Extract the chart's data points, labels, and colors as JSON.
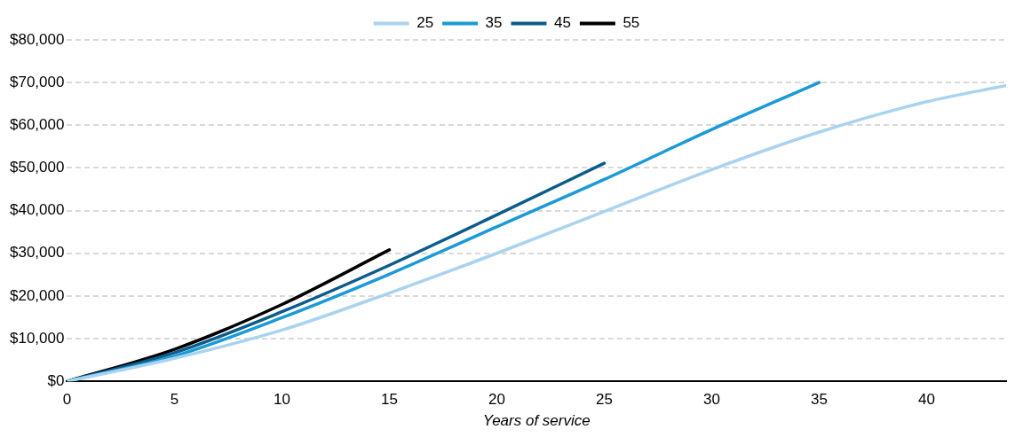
{
  "chart_data": {
    "type": "line",
    "xlabel": "Years of service",
    "x": [
      0,
      5,
      10,
      15,
      20,
      25,
      30,
      35,
      40,
      43.7
    ],
    "series": [
      {
        "name": "25",
        "color": "#a9d3ef",
        "values": [
          0,
          5400,
          12000,
          20700,
          30000,
          39800,
          49600,
          58400,
          65500,
          69300
        ]
      },
      {
        "name": "35",
        "color": "#1a9ad6",
        "x": [
          0,
          5,
          10,
          15,
          20,
          25,
          30,
          35
        ],
        "values": [
          0,
          5900,
          14900,
          25100,
          36200,
          47300,
          59000,
          70000
        ]
      },
      {
        "name": "45",
        "color": "#0b5c8c",
        "x": [
          0,
          5,
          10,
          15,
          20,
          25
        ],
        "values": [
          0,
          6700,
          16300,
          27200,
          39000,
          51100
        ]
      },
      {
        "name": "55",
        "color": "#000000",
        "x": [
          0,
          5,
          10,
          15
        ],
        "values": [
          0,
          7500,
          18000,
          30800
        ]
      }
    ],
    "xlim": [
      0,
      43.7
    ],
    "xticks": [
      0,
      5,
      10,
      15,
      20,
      25,
      30,
      35,
      40
    ],
    "ylim": [
      0,
      80000
    ],
    "yticks": [
      {
        "value": 0,
        "label": "$0"
      },
      {
        "value": 10000,
        "label": "$10,000"
      },
      {
        "value": 20000,
        "label": "$20,000"
      },
      {
        "value": 30000,
        "label": "$30,000"
      },
      {
        "value": 40000,
        "label": "$40,000"
      },
      {
        "value": 50000,
        "label": "$50,000"
      },
      {
        "value": 60000,
        "label": "$60,000"
      },
      {
        "value": 70000,
        "label": "$70,000"
      },
      {
        "value": 80000,
        "label": "$80,000"
      }
    ],
    "grid": "y",
    "legend": "top",
    "marker": "none",
    "line_style": "solid"
  }
}
